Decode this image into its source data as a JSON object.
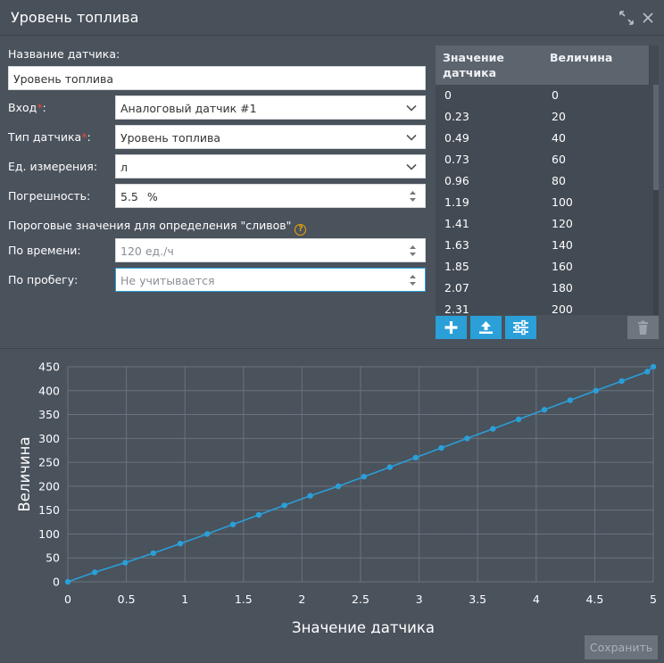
{
  "window": {
    "title": "Уровень топлива"
  },
  "form": {
    "name_label": "Название датчика:",
    "name_value": "Уровень топлива",
    "input_label": "Вход",
    "input_value": "Аналоговый датчик #1",
    "type_label": "Тип датчика",
    "type_value": "Уровень топлива",
    "unit_label": "Ед. измерения:",
    "unit_value": "л",
    "error_label": "Погрешность:",
    "error_value": "5.5",
    "error_unit": "%",
    "threshold_label": "Пороговые значения для определения \"сливов\"",
    "time_label": "По времени:",
    "time_placeholder": "120 ед./ч",
    "mileage_label": "По пробегу:",
    "mileage_placeholder": "Не учитывается",
    "required_mark": "*",
    "colon": ":",
    "help_glyph": "?"
  },
  "table": {
    "col_sensor_line1": "Значение",
    "col_sensor_line2": "датчика",
    "col_value": "Величина",
    "rows": [
      {
        "sensor": "0",
        "value": "0"
      },
      {
        "sensor": "0.23",
        "value": "20"
      },
      {
        "sensor": "0.49",
        "value": "40"
      },
      {
        "sensor": "0.73",
        "value": "60"
      },
      {
        "sensor": "0.96",
        "value": "80"
      },
      {
        "sensor": "1.19",
        "value": "100"
      },
      {
        "sensor": "1.41",
        "value": "120"
      },
      {
        "sensor": "1.63",
        "value": "140"
      },
      {
        "sensor": "1.85",
        "value": "160"
      },
      {
        "sensor": "2.07",
        "value": "180"
      },
      {
        "sensor": "2.31",
        "value": "200"
      }
    ],
    "buttons": {
      "add": "plus-icon",
      "upload": "upload-icon",
      "settings": "sliders-icon",
      "delete": "trash-icon"
    }
  },
  "actions": {
    "save_label": "Сохранить"
  },
  "colors": {
    "accent": "#2a9fd8",
    "background": "#4a525c",
    "line": "#2a9fd8",
    "grid": "#6a737d"
  },
  "chart_data": {
    "type": "line",
    "xlabel": "Значение датчика",
    "ylabel": "Величина",
    "xlim": [
      0,
      5
    ],
    "ylim": [
      0,
      450
    ],
    "xticks": [
      0,
      0.5,
      1,
      1.5,
      2,
      2.5,
      3,
      3.5,
      4,
      4.5,
      5
    ],
    "yticks": [
      0,
      50,
      100,
      150,
      200,
      250,
      300,
      350,
      400,
      450
    ],
    "grid": true,
    "series": [
      {
        "x": [
          0,
          0.23,
          0.49,
          0.73,
          0.96,
          1.19,
          1.41,
          1.63,
          1.85,
          2.07,
          2.31,
          2.53,
          2.75,
          2.97,
          3.19,
          3.41,
          3.63,
          3.85,
          4.07,
          4.29,
          4.51,
          4.73,
          4.95,
          5.0
        ],
        "y": [
          0,
          20,
          40,
          60,
          80,
          100,
          120,
          140,
          160,
          180,
          200,
          220,
          240,
          260,
          280,
          300,
          320,
          340,
          360,
          380,
          400,
          420,
          440,
          450
        ]
      }
    ]
  }
}
